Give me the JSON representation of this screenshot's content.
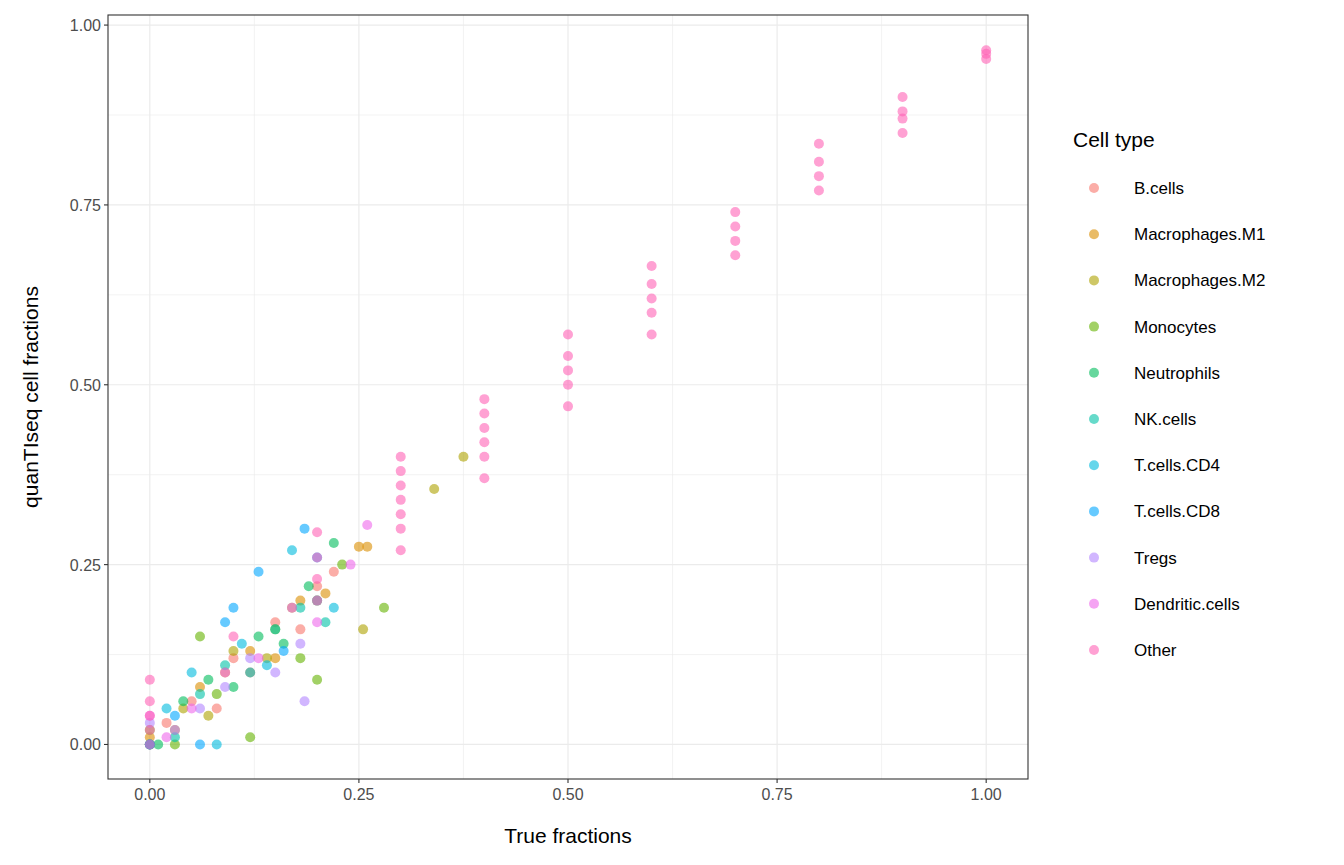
{
  "chart_data": {
    "type": "scatter",
    "x_label": "True fractions",
    "y_label": "quanTIseq cell fractions",
    "legend_title": "Cell type",
    "legend": "right",
    "grid": true,
    "marker": "circle",
    "xlim": [
      -0.05,
      1.05
    ],
    "ylim": [
      -0.048,
      1.014
    ],
    "xticks": [
      {
        "value": 0,
        "label": "0.00"
      },
      {
        "value": 0.25,
        "label": "0.25"
      },
      {
        "value": 0.5,
        "label": "0.50"
      },
      {
        "value": 0.75,
        "label": "0.75"
      },
      {
        "value": 1,
        "label": "1.00"
      }
    ],
    "yticks": [
      {
        "value": 0,
        "label": "0.00"
      },
      {
        "value": 0.25,
        "label": "0.25"
      },
      {
        "value": 0.5,
        "label": "0.50"
      },
      {
        "value": 0.75,
        "label": "0.75"
      },
      {
        "value": 1,
        "label": "1.00"
      }
    ],
    "series": [
      {
        "name": "B.cells",
        "color": "#F8766D",
        "x": [
          0,
          0.02,
          0.05,
          0.08,
          0.1,
          0.12,
          0.15,
          0.18,
          0.2,
          0.22
        ],
        "values": [
          0,
          0.03,
          0.06,
          0.05,
          0.12,
          0.1,
          0.17,
          0.16,
          0.22,
          0.24
        ]
      },
      {
        "name": "Macrophages.M1",
        "color": "#DB8E00",
        "x": [
          0,
          0.03,
          0.06,
          0.09,
          0.12,
          0.15,
          0.18,
          0.21,
          0.25,
          0.26
        ],
        "values": [
          0.01,
          0.02,
          0.08,
          0.1,
          0.13,
          0.12,
          0.2,
          0.21,
          0.275,
          0.275
        ]
      },
      {
        "name": "Macrophages.M2",
        "color": "#AEA200",
        "x": [
          0,
          0.04,
          0.07,
          0.1,
          0.14,
          0.17,
          0.2,
          0.255,
          0.34,
          0.375
        ],
        "values": [
          0,
          0.05,
          0.04,
          0.13,
          0.12,
          0.19,
          0.2,
          0.16,
          0.355,
          0.4
        ]
      },
      {
        "name": "Monocytes",
        "color": "#64B200",
        "x": [
          0,
          0.03,
          0.06,
          0.08,
          0.12,
          0.15,
          0.18,
          0.2,
          0.23,
          0.28
        ],
        "values": [
          0.02,
          0,
          0.15,
          0.07,
          0.01,
          0.16,
          0.12,
          0.09,
          0.25,
          0.19
        ]
      },
      {
        "name": "Neutrophils",
        "color": "#00BD5C",
        "x": [
          0.01,
          0.04,
          0.07,
          0.1,
          0.13,
          0.16,
          0.19,
          0.22
        ],
        "values": [
          0,
          0.06,
          0.09,
          0.08,
          0.15,
          0.14,
          0.22,
          0.28
        ]
      },
      {
        "name": "NK.cells",
        "color": "#00C1A7",
        "x": [
          0,
          0.03,
          0.06,
          0.09,
          0.12,
          0.15,
          0.18,
          0.21
        ],
        "values": [
          0,
          0.01,
          0.07,
          0.11,
          0.1,
          0.16,
          0.19,
          0.17
        ]
      },
      {
        "name": "T.cells.CD4",
        "color": "#00BADE",
        "x": [
          0,
          0.02,
          0.05,
          0.08,
          0.11,
          0.14,
          0.17,
          0.2,
          0.22
        ],
        "values": [
          0,
          0.05,
          0.1,
          0,
          0.14,
          0.11,
          0.27,
          0.2,
          0.19
        ]
      },
      {
        "name": "T.cells.CD8",
        "color": "#00A6FF",
        "x": [
          0,
          0.03,
          0.06,
          0.09,
          0.1,
          0.13,
          0.16,
          0.185,
          0.2
        ],
        "values": [
          0,
          0.04,
          0,
          0.17,
          0.19,
          0.24,
          0.13,
          0.3,
          0.26
        ]
      },
      {
        "name": "Tregs",
        "color": "#B385FF",
        "x": [
          0,
          0.03,
          0.06,
          0.09,
          0.12,
          0.15,
          0.18,
          0.185
        ],
        "values": [
          0.03,
          0.02,
          0.05,
          0.08,
          0.12,
          0.1,
          0.14,
          0.06
        ]
      },
      {
        "name": "Dendritic.cells",
        "color": "#EF67EB",
        "x": [
          0,
          0.02,
          0.05,
          0.09,
          0.13,
          0.17,
          0.2,
          0.24,
          0.26
        ],
        "values": [
          0.04,
          0.01,
          0.05,
          0.1,
          0.12,
          0.19,
          0.17,
          0.25,
          0.305
        ]
      },
      {
        "name": "Other",
        "color": "#FF63B6",
        "x": [
          0,
          0,
          0,
          0,
          0,
          0.1,
          0.2,
          0.2,
          0.2,
          0.2,
          0.3,
          0.3,
          0.3,
          0.3,
          0.3,
          0.3,
          0.3,
          0.4,
          0.4,
          0.4,
          0.4,
          0.4,
          0.4,
          0.5,
          0.5,
          0.5,
          0.5,
          0.5,
          0.6,
          0.6,
          0.6,
          0.6,
          0.6,
          0.7,
          0.7,
          0.7,
          0.7,
          0.8,
          0.8,
          0.8,
          0.8,
          0.9,
          0.9,
          0.9,
          0.9,
          1,
          1,
          1
        ],
        "values": [
          0,
          0.02,
          0.04,
          0.06,
          0.09,
          0.15,
          0.2,
          0.23,
          0.26,
          0.295,
          0.27,
          0.3,
          0.32,
          0.34,
          0.36,
          0.38,
          0.4,
          0.37,
          0.4,
          0.42,
          0.44,
          0.46,
          0.48,
          0.47,
          0.5,
          0.52,
          0.54,
          0.57,
          0.57,
          0.6,
          0.62,
          0.64,
          0.665,
          0.68,
          0.7,
          0.72,
          0.74,
          0.77,
          0.79,
          0.81,
          0.835,
          0.85,
          0.87,
          0.88,
          0.9,
          0.953,
          0.96,
          0.965
        ]
      }
    ]
  }
}
